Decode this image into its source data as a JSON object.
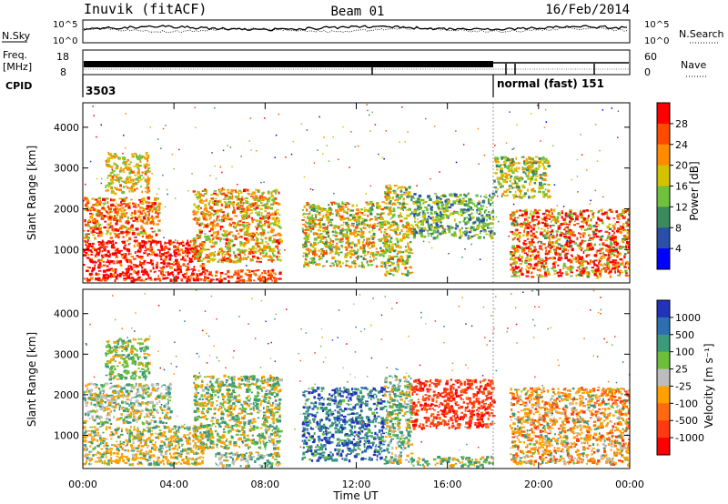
{
  "header": {
    "station": "Inuvik (fitACF)",
    "beam": "Beam 01",
    "date": "16/Feb/2014"
  },
  "aux_panels": {
    "nsky": {
      "label": "N.Sky",
      "ticks": [
        "10^5",
        "10^0"
      ]
    },
    "nsearch": {
      "label": "N.Search",
      "ticks": [
        "10^5",
        "10^0"
      ]
    },
    "freq": {
      "label_line1": "Freq.",
      "label_line2": "[MHz]",
      "ticks": [
        "18",
        "8"
      ]
    },
    "nave": {
      "label": "Nave",
      "ticks": [
        "60",
        "0"
      ]
    },
    "cpid": {
      "label": "CPID",
      "entries": [
        "3503",
        "normal (fast) 151"
      ]
    }
  },
  "chart_data": [
    {
      "type": "heatmap",
      "name": "power",
      "ylabel": "Slant Range [km]",
      "xlabel": "",
      "colorbar_label": "Power [dB]",
      "colorbar_ticks": [
        "28",
        "24",
        "20",
        "16",
        "12",
        "8",
        "4"
      ],
      "colorbar_colors": [
        "#ff0000",
        "#ff4a00",
        "#ff8c00",
        "#d4c200",
        "#6fc13c",
        "#3a8a5c",
        "#2a4fa8",
        "#0000ff"
      ],
      "x_ticks": [
        "00:00",
        "04:00",
        "08:00",
        "12:00",
        "16:00",
        "20:00",
        "00:00"
      ],
      "y_ticks": [
        "4000",
        "3000",
        "2000",
        "1000"
      ],
      "ylim": [
        180,
        4600
      ]
    },
    {
      "type": "heatmap",
      "name": "velocity",
      "ylabel": "Slant Range [km]",
      "xlabel": "Time UT",
      "colorbar_label": "Velocity [m s⁻¹]",
      "colorbar_ticks": [
        "1000",
        "500",
        "100",
        "25",
        "-25",
        "-100",
        "-500",
        "-1000"
      ],
      "colorbar_colors": [
        "#2233bb",
        "#2d6fb0",
        "#3a9a7a",
        "#6cbf3a",
        "#bdbdbd",
        "#ffa000",
        "#ff6a10",
        "#ff3a10",
        "#ff0000"
      ],
      "x_ticks": [
        "00:00",
        "04:00",
        "08:00",
        "12:00",
        "16:00",
        "20:00",
        "00:00"
      ],
      "y_ticks": [
        "4000",
        "3000",
        "2000",
        "1000"
      ],
      "ylim": [
        180,
        4600
      ]
    }
  ]
}
